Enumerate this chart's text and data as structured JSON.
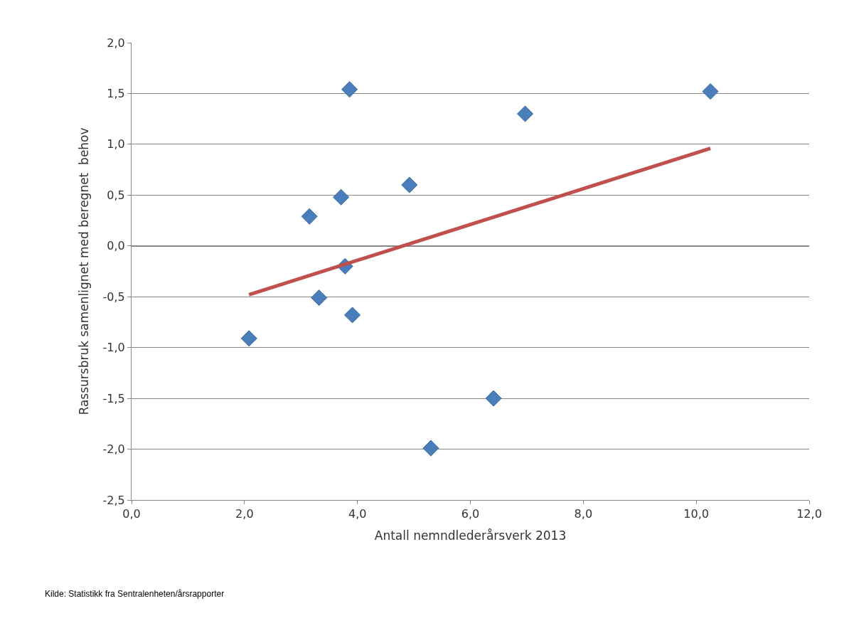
{
  "chart_data": {
    "type": "scatter",
    "xlabel": "Antall nemndlederårsverk 2013",
    "ylabel": "Rassursbruk samenlignet med beregnet  behov",
    "x": [
      2.08,
      3.15,
      3.32,
      3.71,
      3.78,
      3.86,
      3.91,
      4.92,
      5.3,
      6.41,
      6.97,
      10.25
    ],
    "series": [
      {
        "color": "#4a7ebb",
        "marker": "diamond",
        "values": [
          -0.91,
          0.29,
          -0.51,
          0.48,
          -0.2,
          1.54,
          -0.68,
          0.6,
          -1.99,
          -1.5,
          1.3,
          1.52
        ]
      },
      {
        "type": "line",
        "color": "#c0504d",
        "x": [
          2.08,
          10.25
        ],
        "values": [
          -0.48,
          0.96
        ]
      }
    ],
    "xlim": [
      0,
      12
    ],
    "xticks": [
      {
        "value": 0,
        "label": "0,0"
      },
      {
        "value": 2,
        "label": "2,0"
      },
      {
        "value": 4,
        "label": "4,0"
      },
      {
        "value": 6,
        "label": "6,0"
      },
      {
        "value": 8,
        "label": "8,0"
      },
      {
        "value": 10,
        "label": "10,0"
      },
      {
        "value": 12,
        "label": "12,0"
      }
    ],
    "ylim": [
      -2.5,
      2
    ],
    "yticks": [
      {
        "value": -2.5,
        "label": "-2,5"
      },
      {
        "value": -2,
        "label": "-2,0"
      },
      {
        "value": -1.5,
        "label": "-1,5"
      },
      {
        "value": -1,
        "label": "-1,0"
      },
      {
        "value": -0.5,
        "label": "-0,5"
      },
      {
        "value": 0,
        "label": "0,0"
      },
      {
        "value": 0.5,
        "label": "0,5"
      },
      {
        "value": 1,
        "label": "1,0"
      },
      {
        "value": 1.5,
        "label": "1,5"
      },
      {
        "value": 2,
        "label": "2,0"
      }
    ],
    "grid": "y",
    "legend": false,
    "annotations": [
      "Kilde: Statistikk fra Sentralenheten/årsrapporter"
    ]
  }
}
